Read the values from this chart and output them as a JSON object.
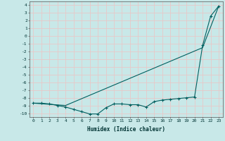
{
  "title": "",
  "xlabel": "Humidex (Indice chaleur)",
  "ylabel": "",
  "xlim": [
    -0.5,
    23.5
  ],
  "ylim": [
    -10.5,
    4.5
  ],
  "xticks": [
    0,
    1,
    2,
    3,
    4,
    5,
    6,
    7,
    8,
    9,
    10,
    11,
    12,
    13,
    14,
    15,
    16,
    17,
    18,
    19,
    20,
    21,
    22,
    23
  ],
  "yticks": [
    4,
    3,
    2,
    1,
    0,
    -1,
    -2,
    -3,
    -4,
    -5,
    -6,
    -7,
    -8,
    -9,
    -10
  ],
  "background_color": "#c8e8e8",
  "grid_color": "#e8c8c8",
  "line_color": "#006060",
  "smooth_line_x": [
    0,
    4,
    21,
    23
  ],
  "smooth_line_y": [
    -8.7,
    -9.0,
    -1.5,
    3.9
  ],
  "marker_line_x": [
    0,
    1,
    2,
    3,
    4,
    5,
    6,
    7,
    8,
    9,
    10,
    11,
    12,
    13,
    14,
    15,
    16,
    17,
    18,
    19,
    20,
    21,
    22,
    23
  ],
  "marker_line_y": [
    -8.7,
    -8.7,
    -8.8,
    -9.0,
    -9.2,
    -9.5,
    -9.8,
    -10.1,
    -10.1,
    -9.3,
    -8.8,
    -8.8,
    -8.9,
    -8.9,
    -9.2,
    -8.5,
    -8.3,
    -8.2,
    -8.1,
    -8.0,
    -7.9,
    -1.2,
    2.6,
    3.9
  ]
}
